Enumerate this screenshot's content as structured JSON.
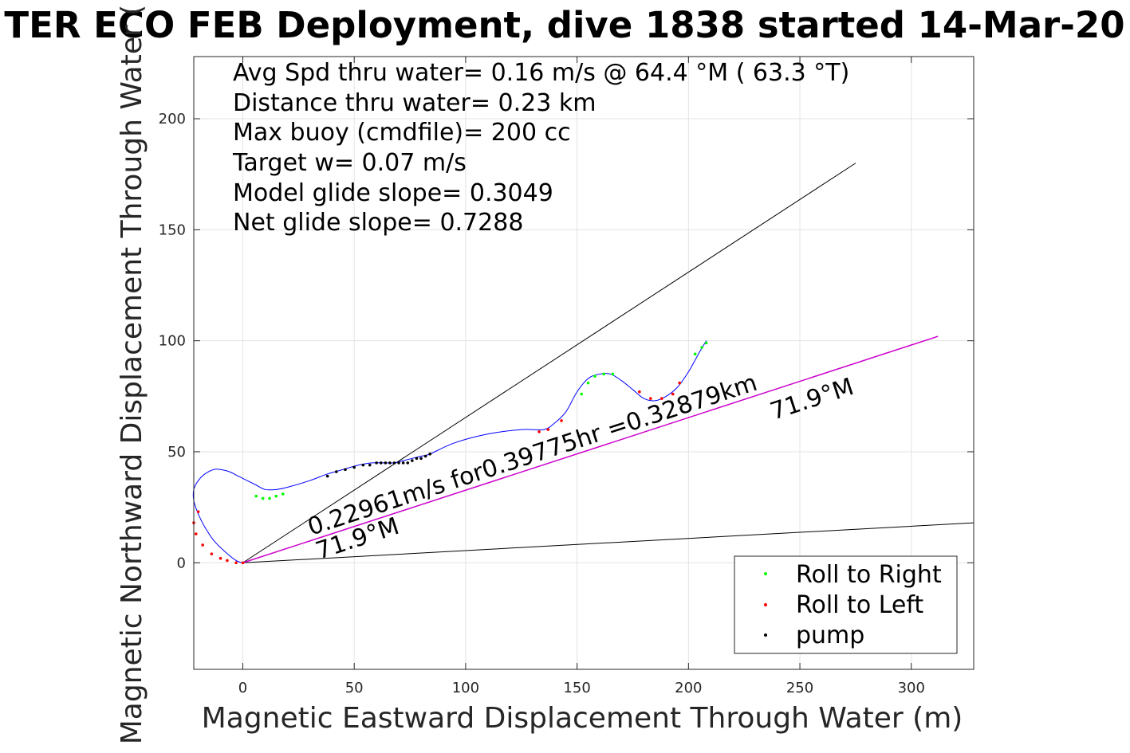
{
  "chart_data": {
    "type": "line",
    "title": "TER ECO FEB Deployment, dive 1838 started 14-Mar-20",
    "xlabel": "Magnetic Eastward Displacement Through Water (m)",
    "ylabel": "Magnetic Northward Displacement Through Water (",
    "xlim": [
      -22,
      328
    ],
    "ylim": [
      -48,
      228
    ],
    "xticks": [
      0,
      50,
      100,
      150,
      200,
      250,
      300
    ],
    "yticks": [
      0,
      50,
      100,
      150,
      200
    ],
    "grid": true,
    "annotations": [
      "Avg Spd thru water=  0.16 m/s @  64.4 °M ( 63.3 °T)",
      "Distance thru water=  0.23 km",
      "Max buoy (cmdfile)= 200 cc",
      "Target w= 0.07 m/s",
      "Model glide slope= 0.3049",
      "Net glide slope= 0.7288"
    ],
    "rotated_labels": {
      "speed_text": "0.22961m/s for0.39775hr =0.32879km",
      "heading_near": "71.9°M",
      "heading_far": "71.9°M"
    },
    "legend": {
      "position": "bottom-right",
      "entries": [
        {
          "label": "Roll to Right",
          "color": "#00ff00"
        },
        {
          "label": "Roll to Left",
          "color": "#ff0000"
        },
        {
          "label": "pump",
          "color": "#000000"
        }
      ]
    },
    "reference_lines": [
      {
        "color": "#000000",
        "x": [
          0,
          275
        ],
        "y": [
          0,
          180
        ]
      },
      {
        "color": "#000000",
        "x": [
          0,
          328
        ],
        "y": [
          0,
          18
        ]
      },
      {
        "color": "#cc00cc",
        "x": [
          0,
          312
        ],
        "y": [
          0,
          102
        ]
      }
    ],
    "track": {
      "color": "#0000ff",
      "x": [
        0,
        -3,
        -8,
        -13,
        -17,
        -20,
        -22,
        -22,
        -20,
        -17,
        -13,
        -10,
        -6,
        -2,
        2,
        6,
        10,
        15,
        20,
        30,
        38,
        45,
        52,
        58,
        64,
        68,
        72,
        76,
        80,
        84,
        95,
        110,
        125,
        135,
        140,
        145,
        150,
        155,
        160,
        165,
        170,
        175,
        180,
        185,
        190,
        195,
        200,
        205,
        208
      ],
      "y": [
        0,
        1,
        5,
        10,
        16,
        22,
        28,
        33,
        37,
        40,
        42,
        42,
        41,
        39,
        37,
        35,
        33,
        33,
        34,
        37,
        40,
        42,
        44,
        45,
        45,
        45,
        46,
        47,
        48,
        49,
        54,
        58,
        60,
        60,
        63,
        68,
        77,
        83,
        85,
        85,
        82,
        78,
        74,
        73,
        75,
        79,
        86,
        95,
        100
      ]
    },
    "roll_right_points": {
      "x": [
        6,
        9,
        12,
        15,
        18,
        152,
        155,
        158,
        162,
        166,
        203,
        206,
        208
      ],
      "y": [
        30,
        29,
        29,
        30,
        31,
        76,
        81,
        84,
        85,
        85,
        94,
        97,
        99
      ]
    },
    "roll_left_points": {
      "x": [
        -20,
        -22,
        -21,
        -18,
        -14,
        -10,
        -7,
        -3,
        0,
        133,
        137,
        143,
        178,
        183,
        188,
        193,
        196
      ],
      "y": [
        23,
        18,
        13,
        8,
        4,
        2,
        1,
        0,
        0,
        59,
        60,
        64,
        77,
        74,
        74,
        76,
        81
      ]
    },
    "pump_points": {
      "x": [
        38,
        42,
        46,
        50,
        54,
        57,
        60,
        62,
        64,
        66,
        68,
        70,
        72,
        74,
        76,
        78,
        80,
        82,
        84
      ],
      "y": [
        39,
        41,
        42,
        43,
        44,
        44,
        45,
        45,
        45,
        45,
        45,
        45,
        45,
        45,
        46,
        47,
        47,
        48,
        49
      ]
    }
  }
}
